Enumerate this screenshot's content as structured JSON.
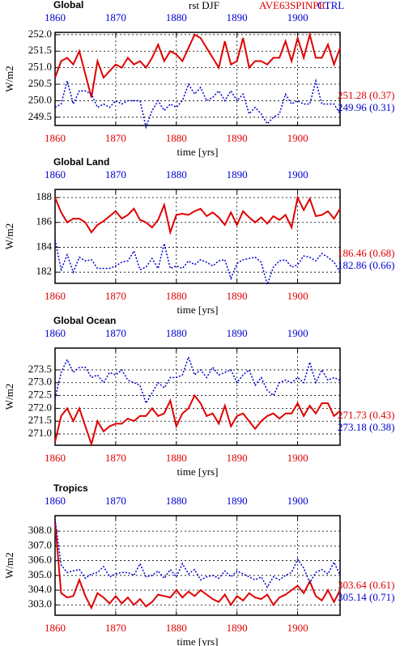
{
  "chart_data": [
    {
      "type": "line",
      "title": "Global",
      "subtitle": "rst DJF",
      "xlabel": "time [yrs]",
      "ylabel": "W/m2",
      "x": [
        1860,
        1861,
        1862,
        1863,
        1864,
        1865,
        1866,
        1867,
        1868,
        1869,
        1870,
        1871,
        1872,
        1873,
        1874,
        1875,
        1876,
        1877,
        1878,
        1879,
        1880,
        1881,
        1882,
        1883,
        1884,
        1885,
        1886,
        1887,
        1888,
        1889,
        1890,
        1891,
        1892,
        1893,
        1894,
        1895,
        1896,
        1897,
        1898,
        1899,
        1900,
        1901,
        1902,
        1903,
        1904,
        1905,
        1906,
        1907
      ],
      "xlim": [
        1860,
        1907
      ],
      "xticks": [
        1860,
        1870,
        1880,
        1890,
        1900
      ],
      "ylim": [
        249.25,
        252.07
      ],
      "yticks": [
        {
          "value": 249.5,
          "label": "249.5"
        },
        {
          "value": 250,
          "label": "250.0"
        },
        {
          "value": 250.5,
          "label": "250.5"
        },
        {
          "value": 251,
          "label": "251.0"
        },
        {
          "value": 251.5,
          "label": "251.5"
        },
        {
          "value": 252,
          "label": "252.0"
        }
      ],
      "grid": true,
      "series": [
        {
          "name": "AVE63SPINPIC",
          "color": "#e00000",
          "annotation": "251.28 (0.37)",
          "values": [
            250.7,
            251.2,
            251.3,
            251.1,
            251.5,
            250.8,
            250.1,
            251.2,
            250.7,
            250.9,
            251.1,
            251.0,
            251.3,
            251.1,
            251.2,
            251.0,
            251.3,
            251.7,
            251.2,
            251.5,
            251.4,
            251.2,
            251.6,
            252.0,
            251.9,
            251.6,
            251.3,
            251.0,
            251.8,
            251.1,
            251.2,
            251.9,
            251.0,
            251.2,
            251.2,
            251.1,
            251.3,
            251.3,
            251.8,
            251.2,
            251.9,
            251.3,
            252.0,
            251.3,
            251.3,
            251.7,
            251.1,
            251.6
          ]
        },
        {
          "name": "CTRL",
          "color": "#0000d0",
          "annotation": "249.96 (0.31)",
          "values": [
            249.8,
            249.9,
            250.6,
            249.9,
            250.3,
            250.3,
            250.2,
            249.8,
            249.9,
            249.8,
            250.0,
            249.9,
            250.0,
            250.0,
            250.0,
            249.2,
            249.7,
            250.0,
            249.7,
            249.9,
            249.8,
            250.0,
            250.5,
            250.2,
            250.4,
            250.0,
            250.1,
            250.3,
            250.0,
            250.3,
            250.0,
            250.2,
            249.6,
            249.8,
            249.6,
            249.3,
            249.5,
            249.6,
            250.2,
            249.9,
            250.0,
            249.9,
            249.9,
            250.6,
            249.9,
            249.9,
            249.9,
            249.6
          ]
        }
      ]
    },
    {
      "type": "line",
      "title": "Global Land",
      "xlabel": "time [yrs]",
      "ylabel": "W/m2",
      "x": [
        1860,
        1861,
        1862,
        1863,
        1864,
        1865,
        1866,
        1867,
        1868,
        1869,
        1870,
        1871,
        1872,
        1873,
        1874,
        1875,
        1876,
        1877,
        1878,
        1879,
        1880,
        1881,
        1882,
        1883,
        1884,
        1885,
        1886,
        1887,
        1888,
        1889,
        1890,
        1891,
        1892,
        1893,
        1894,
        1895,
        1896,
        1897,
        1898,
        1899,
        1900,
        1901,
        1902,
        1903,
        1904,
        1905,
        1906,
        1907
      ],
      "xlim": [
        1860,
        1907
      ],
      "xticks": [
        1860,
        1870,
        1880,
        1890,
        1900
      ],
      "ylim": [
        181.1,
        188.65
      ],
      "yticks": [
        182,
        184,
        186,
        188
      ],
      "grid": true,
      "series": [
        {
          "color": "#e00000",
          "annotation": "186.46 (0.68)",
          "values": [
            188.0,
            186.8,
            186.0,
            186.3,
            186.3,
            186.0,
            185.2,
            185.8,
            186.1,
            186.5,
            186.9,
            186.3,
            186.6,
            187.1,
            186.2,
            186.0,
            185.6,
            186.2,
            187.4,
            185.2,
            186.6,
            186.7,
            186.6,
            186.9,
            187.1,
            186.5,
            186.8,
            186.4,
            185.8,
            186.8,
            185.8,
            186.9,
            186.4,
            186.0,
            186.4,
            185.9,
            186.5,
            186.2,
            186.6,
            185.6,
            188.0,
            187.0,
            187.9,
            186.5,
            186.6,
            186.9,
            186.3,
            187.1
          ]
        },
        {
          "color": "#0000d0",
          "annotation": "182.86 (0.66)",
          "values": [
            184.6,
            182.2,
            183.4,
            182.0,
            183.2,
            182.9,
            183.0,
            182.3,
            182.3,
            182.3,
            182.5,
            182.8,
            182.9,
            183.7,
            182.2,
            182.4,
            183.1,
            182.3,
            184.3,
            182.3,
            182.5,
            182.3,
            182.9,
            182.6,
            183.0,
            182.8,
            182.5,
            182.9,
            183.0,
            181.5,
            182.7,
            183.0,
            183.1,
            183.2,
            182.8,
            181.0,
            182.4,
            182.9,
            183.0,
            182.4,
            182.6,
            183.3,
            183.2,
            182.9,
            183.5,
            183.2,
            182.8,
            182.0
          ]
        }
      ]
    },
    {
      "type": "line",
      "title": "Global Ocean",
      "xlabel": "time [yrs]",
      "ylabel": "W/m2",
      "x": [
        1860,
        1861,
        1862,
        1863,
        1864,
        1865,
        1866,
        1867,
        1868,
        1869,
        1870,
        1871,
        1872,
        1873,
        1874,
        1875,
        1876,
        1877,
        1878,
        1879,
        1880,
        1881,
        1882,
        1883,
        1884,
        1885,
        1886,
        1887,
        1888,
        1889,
        1890,
        1891,
        1892,
        1893,
        1894,
        1895,
        1896,
        1897,
        1898,
        1899,
        1900,
        1901,
        1902,
        1903,
        1904,
        1905,
        1906,
        1907
      ],
      "xlim": [
        1860,
        1907
      ],
      "xticks": [
        1860,
        1870,
        1880,
        1890,
        1900
      ],
      "ylim": [
        270.56,
        274.35
      ],
      "yticks": [
        {
          "value": 271,
          "label": "271.0"
        },
        271.5,
        {
          "value": 272,
          "label": "272.0"
        },
        272.5,
        {
          "value": 273,
          "label": "273.0"
        },
        273.5
      ],
      "grid": true,
      "series": [
        {
          "color": "#e00000",
          "annotation": "271.73 (0.43)",
          "values": [
            270.7,
            271.7,
            272.0,
            271.5,
            272.0,
            271.3,
            270.6,
            271.5,
            271.1,
            271.3,
            271.4,
            271.4,
            271.6,
            271.5,
            271.7,
            271.7,
            272.0,
            271.7,
            271.8,
            272.3,
            271.3,
            271.8,
            272.0,
            272.5,
            272.2,
            271.7,
            271.8,
            271.4,
            272.1,
            271.3,
            271.7,
            271.8,
            271.5,
            271.2,
            271.5,
            271.7,
            271.8,
            271.6,
            271.8,
            271.8,
            272.2,
            271.7,
            272.1,
            271.8,
            272.2,
            272.2,
            271.7,
            271.9
          ]
        },
        {
          "color": "#0000d0",
          "annotation": "273.18 (0.38)",
          "values": [
            272.4,
            273.4,
            273.9,
            273.4,
            273.6,
            273.6,
            273.2,
            273.3,
            273.0,
            273.4,
            273.3,
            273.5,
            273.1,
            273.0,
            272.9,
            272.2,
            272.6,
            273.0,
            272.8,
            273.2,
            273.2,
            273.3,
            274.0,
            273.3,
            273.5,
            273.2,
            273.6,
            273.3,
            273.4,
            273.5,
            273.0,
            273.3,
            273.5,
            272.9,
            273.2,
            272.7,
            272.5,
            273.0,
            273.1,
            273.0,
            273.2,
            273.0,
            273.8,
            273.0,
            273.5,
            273.1,
            273.2,
            273.1
          ]
        }
      ]
    },
    {
      "type": "line",
      "title": "Tropics",
      "xlabel": "time [yrs]",
      "ylabel": "W/m2",
      "x": [
        1860,
        1861,
        1862,
        1863,
        1864,
        1865,
        1866,
        1867,
        1868,
        1869,
        1870,
        1871,
        1872,
        1873,
        1874,
        1875,
        1876,
        1877,
        1878,
        1879,
        1880,
        1881,
        1882,
        1883,
        1884,
        1885,
        1886,
        1887,
        1888,
        1889,
        1890,
        1891,
        1892,
        1893,
        1894,
        1895,
        1896,
        1897,
        1898,
        1899,
        1900,
        1901,
        1902,
        1903,
        1904,
        1905,
        1906,
        1907
      ],
      "xlim": [
        1860,
        1907
      ],
      "xticks": [
        1860,
        1870,
        1880,
        1890,
        1900
      ],
      "ylim": [
        302.3,
        309.05
      ],
      "yticks": [
        {
          "value": 303,
          "label": "303.0"
        },
        {
          "value": 304,
          "label": "304.0"
        },
        {
          "value": 305,
          "label": "305.0"
        },
        {
          "value": 306,
          "label": "306.0"
        },
        {
          "value": 307,
          "label": "307.0"
        },
        {
          "value": 308,
          "label": "308.0"
        }
      ],
      "grid": true,
      "series": [
        {
          "color": "#e00000",
          "annotation": "303.64 (0.61)",
          "values": [
            308.6,
            303.8,
            303.5,
            303.6,
            304.7,
            303.6,
            302.8,
            303.8,
            303.5,
            303.1,
            303.6,
            303.1,
            303.5,
            303.0,
            303.4,
            302.9,
            303.2,
            303.7,
            303.6,
            303.5,
            304.0,
            303.5,
            303.9,
            303.6,
            304.0,
            303.7,
            303.4,
            303.2,
            303.7,
            303.0,
            303.6,
            303.3,
            303.8,
            303.5,
            303.4,
            303.7,
            303.0,
            303.5,
            303.7,
            304.0,
            304.3,
            303.8,
            304.6,
            303.6,
            303.3,
            304.0,
            303.2,
            304.0
          ]
        },
        {
          "color": "#0000d0",
          "annotation": "305.14 (0.71)",
          "values": [
            308.8,
            305.7,
            305.2,
            305.3,
            305.4,
            304.8,
            305.1,
            305.2,
            305.6,
            304.9,
            305.1,
            305.2,
            305.2,
            305.0,
            305.8,
            304.9,
            305.0,
            305.3,
            304.8,
            305.4,
            304.9,
            305.8,
            305.1,
            305.4,
            304.7,
            304.9,
            305.0,
            304.8,
            305.3,
            304.9,
            305.3,
            305.1,
            304.9,
            304.7,
            304.9,
            304.2,
            304.9,
            304.7,
            305.0,
            305.2,
            306.1,
            305.5,
            304.5,
            305.2,
            305.4,
            305.1,
            305.9,
            305.0
          ]
        }
      ]
    }
  ]
}
